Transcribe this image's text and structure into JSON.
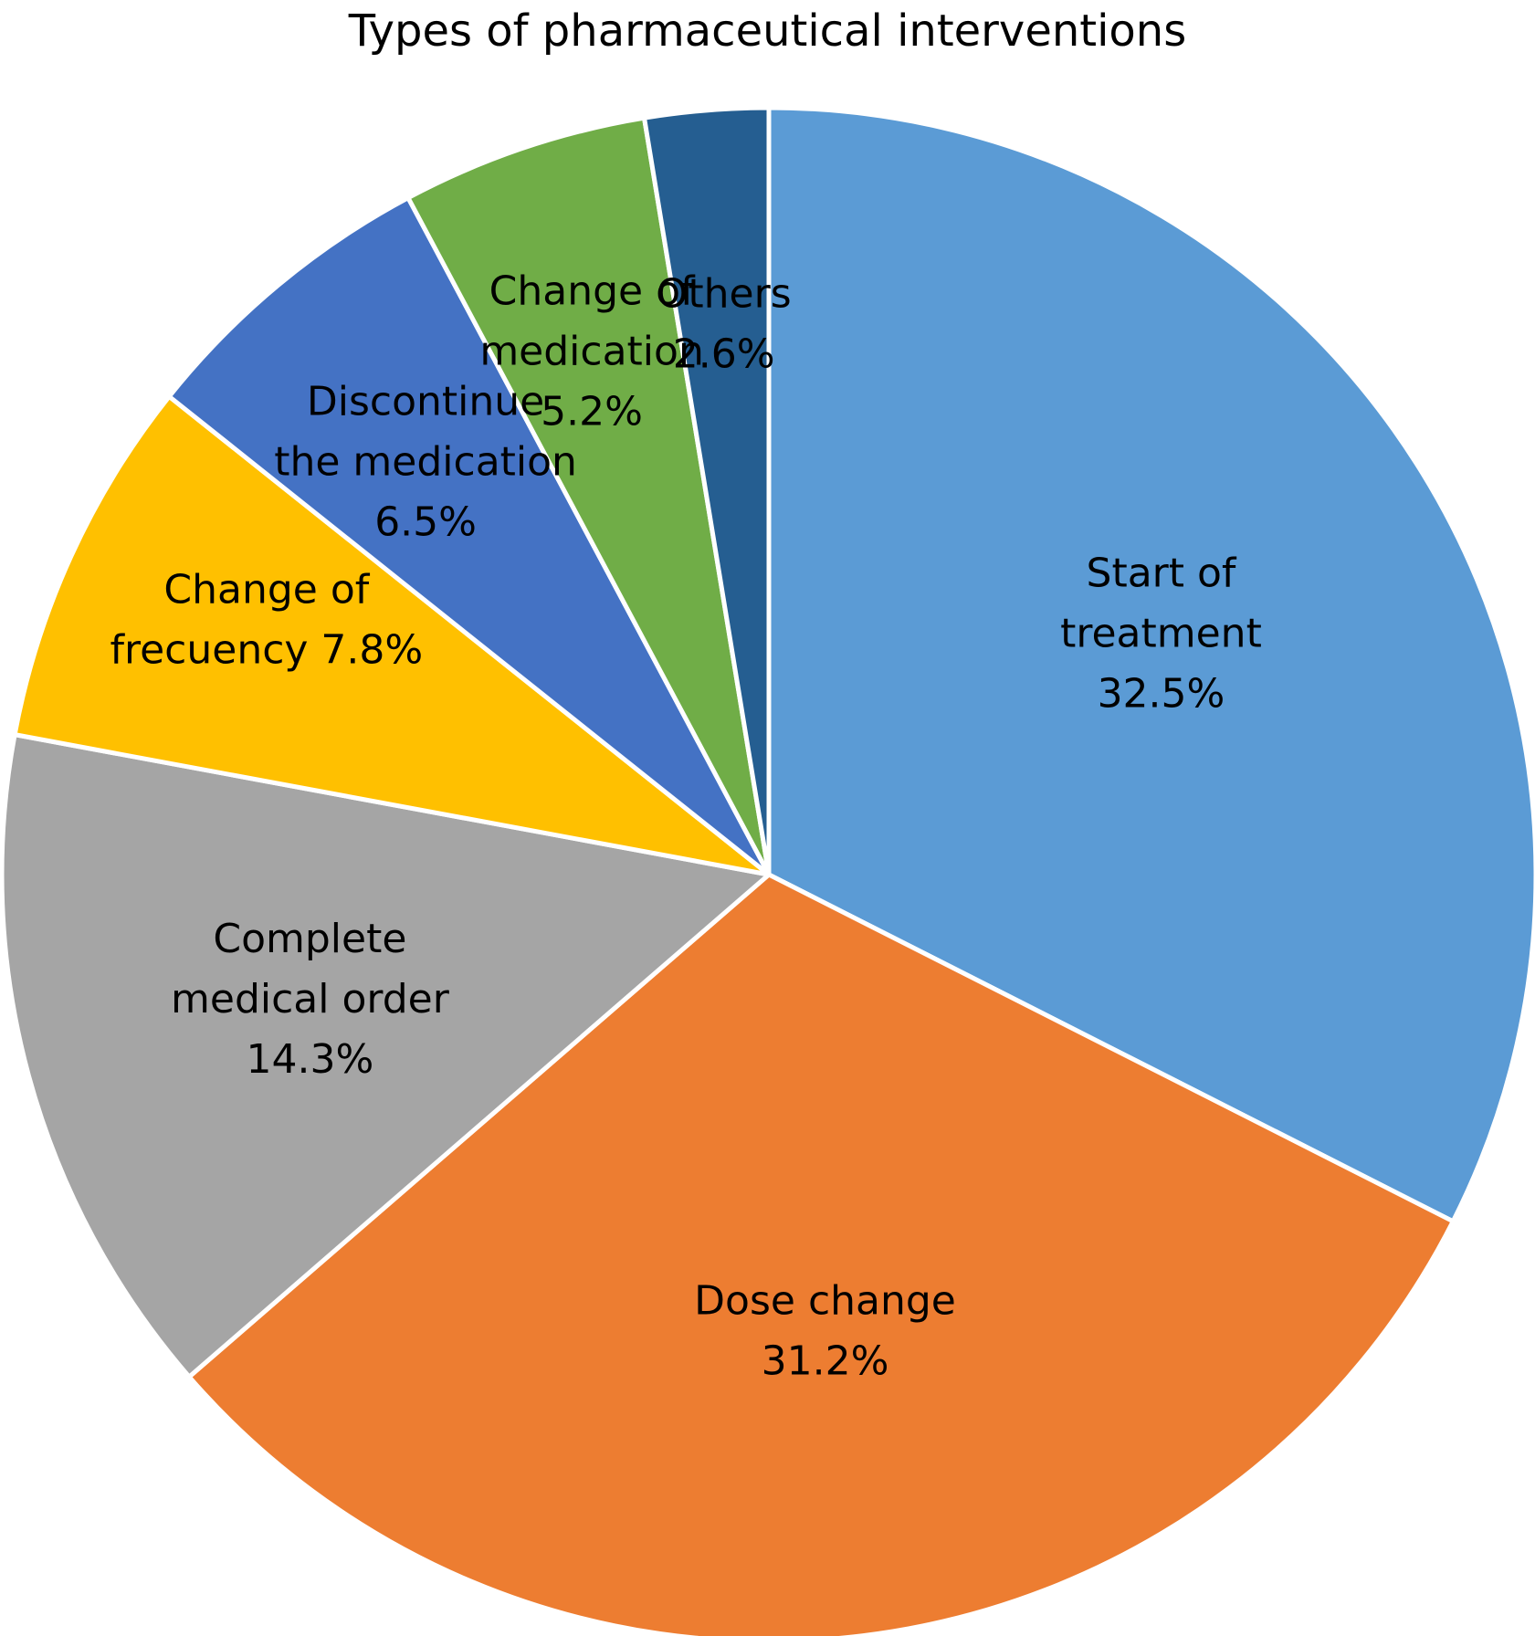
{
  "chart_data": {
    "type": "pie",
    "title": "Types of pharmaceutical interventions",
    "slices": [
      {
        "label_lines": [
          "Start of",
          "treatment"
        ],
        "value": 32.5,
        "value_label": "32.5%",
        "color": "#5B9BD5"
      },
      {
        "label_lines": [
          "Dose change"
        ],
        "value": 31.2,
        "value_label": "31.2%",
        "color": "#ED7D31"
      },
      {
        "label_lines": [
          "Complete",
          "medical order"
        ],
        "value": 14.3,
        "value_label": "14.3%",
        "color": "#A5A5A5"
      },
      {
        "label_lines": [
          "Change of",
          "frecuency"
        ],
        "value": 7.8,
        "value_label": "7.8%",
        "color": "#FFC000"
      },
      {
        "label_lines": [
          "Discontinue",
          "the medication"
        ],
        "value": 6.5,
        "value_label": "6.5%",
        "color": "#4472C4"
      },
      {
        "label_lines": [
          "Change of",
          "medication"
        ],
        "value": 5.2,
        "value_label": "5.2%",
        "color": "#70AD47"
      },
      {
        "label_lines": [
          "Others"
        ],
        "value": 2.6,
        "value_label": "2.6%",
        "color": "#255E91"
      }
    ]
  }
}
